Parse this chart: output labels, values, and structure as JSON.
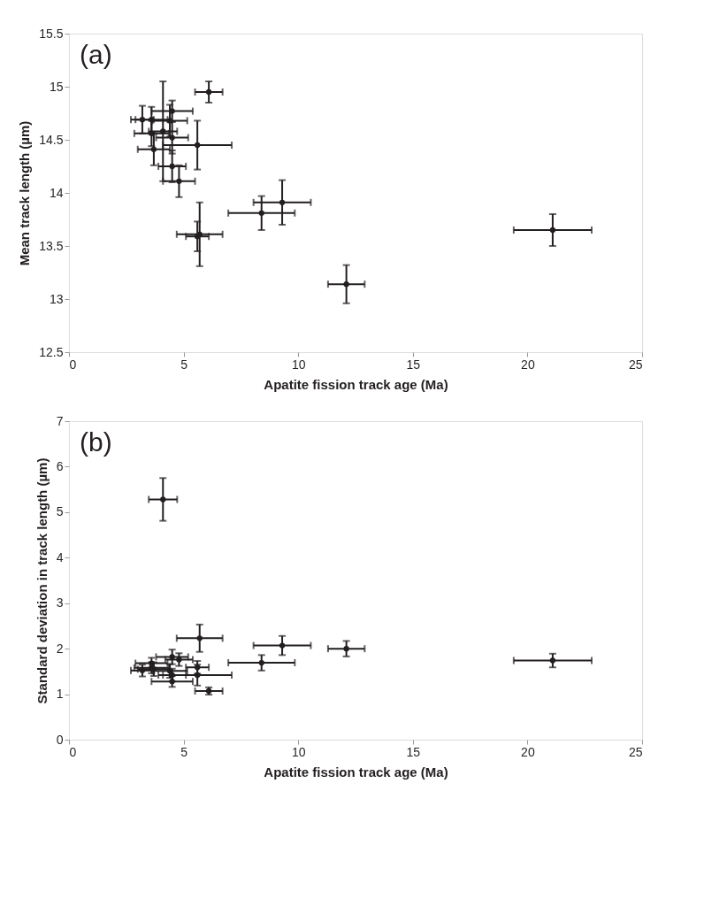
{
  "chart_data": [
    {
      "type": "scatter",
      "xlabel": "Apatite fission track age (Ma)",
      "ylabel": "Mean track length (µm)",
      "annotations": [
        "(a)"
      ],
      "xlim": [
        0,
        25
      ],
      "xticks": [
        0,
        5,
        10,
        15,
        20,
        25
      ],
      "ylim": [
        12.5,
        15.5
      ],
      "yticks": [
        12.5,
        13,
        13.5,
        14,
        14.5,
        15,
        15.5
      ],
      "grid": false,
      "marker": "circle",
      "series": [
        {
          "color": "#231f20",
          "x": [
            6.1,
            21.1,
            12.1,
            9.3,
            8.4,
            5.7,
            5.6,
            5.6,
            4.8,
            4.5,
            3.7,
            4.5,
            3.6,
            4.1,
            4.4,
            3.6,
            3.2,
            4.5
          ],
          "xerrors": [
            0.6,
            1.7,
            0.8,
            1.25,
            1.45,
            1.0,
            0.5,
            1.5,
            0.7,
            0.6,
            0.7,
            0.7,
            0.75,
            0.62,
            0.76,
            0.7,
            0.5,
            0.9
          ],
          "values": [
            14.95,
            13.65,
            13.14,
            13.91,
            13.81,
            13.61,
            13.59,
            14.45,
            14.11,
            14.25,
            14.41,
            14.52,
            14.56,
            14.58,
            14.68,
            14.69,
            14.69,
            14.77
          ],
          "errors": [
            0.1,
            0.15,
            0.18,
            0.21,
            0.16,
            0.3,
            0.14,
            0.23,
            0.15,
            0.15,
            0.15,
            0.15,
            0.12,
            0.47,
            0.15,
            0.12,
            0.13,
            0.1
          ]
        }
      ]
    },
    {
      "type": "scatter",
      "xlabel": "Apatite fission track age (Ma)",
      "ylabel": "Standard deviation in track length (µm)",
      "annotations": [
        "(b)"
      ],
      "xlim": [
        0,
        25
      ],
      "xticks": [
        0,
        5,
        10,
        15,
        20,
        25
      ],
      "ylim": [
        0,
        7
      ],
      "yticks": [
        0,
        1,
        2,
        3,
        4,
        5,
        6,
        7
      ],
      "grid": false,
      "marker": "circle",
      "series": [
        {
          "color": "#231f20",
          "x": [
            4.1,
            5.7,
            9.3,
            8.4,
            12.1,
            21.1,
            6.1,
            4.5,
            4.8,
            3.6,
            3.2,
            3.6,
            5.6,
            4.4,
            5.6,
            4.5,
            4.5,
            3.7
          ],
          "xerrors": [
            0.62,
            1.0,
            1.25,
            1.45,
            0.8,
            1.7,
            0.6,
            0.7,
            0.6,
            0.7,
            0.5,
            0.75,
            0.5,
            0.76,
            1.5,
            0.6,
            0.9,
            0.7
          ],
          "values": [
            5.28,
            2.23,
            2.07,
            1.69,
            2.0,
            1.74,
            1.07,
            1.82,
            1.76,
            1.68,
            1.52,
            1.58,
            1.59,
            1.51,
            1.42,
            1.42,
            1.28,
            1.55
          ],
          "errors": [
            0.47,
            0.3,
            0.21,
            0.17,
            0.17,
            0.15,
            0.08,
            0.16,
            0.14,
            0.12,
            0.13,
            0.12,
            0.14,
            0.15,
            0.23,
            0.14,
            0.12,
            0.15
          ]
        }
      ]
    }
  ]
}
